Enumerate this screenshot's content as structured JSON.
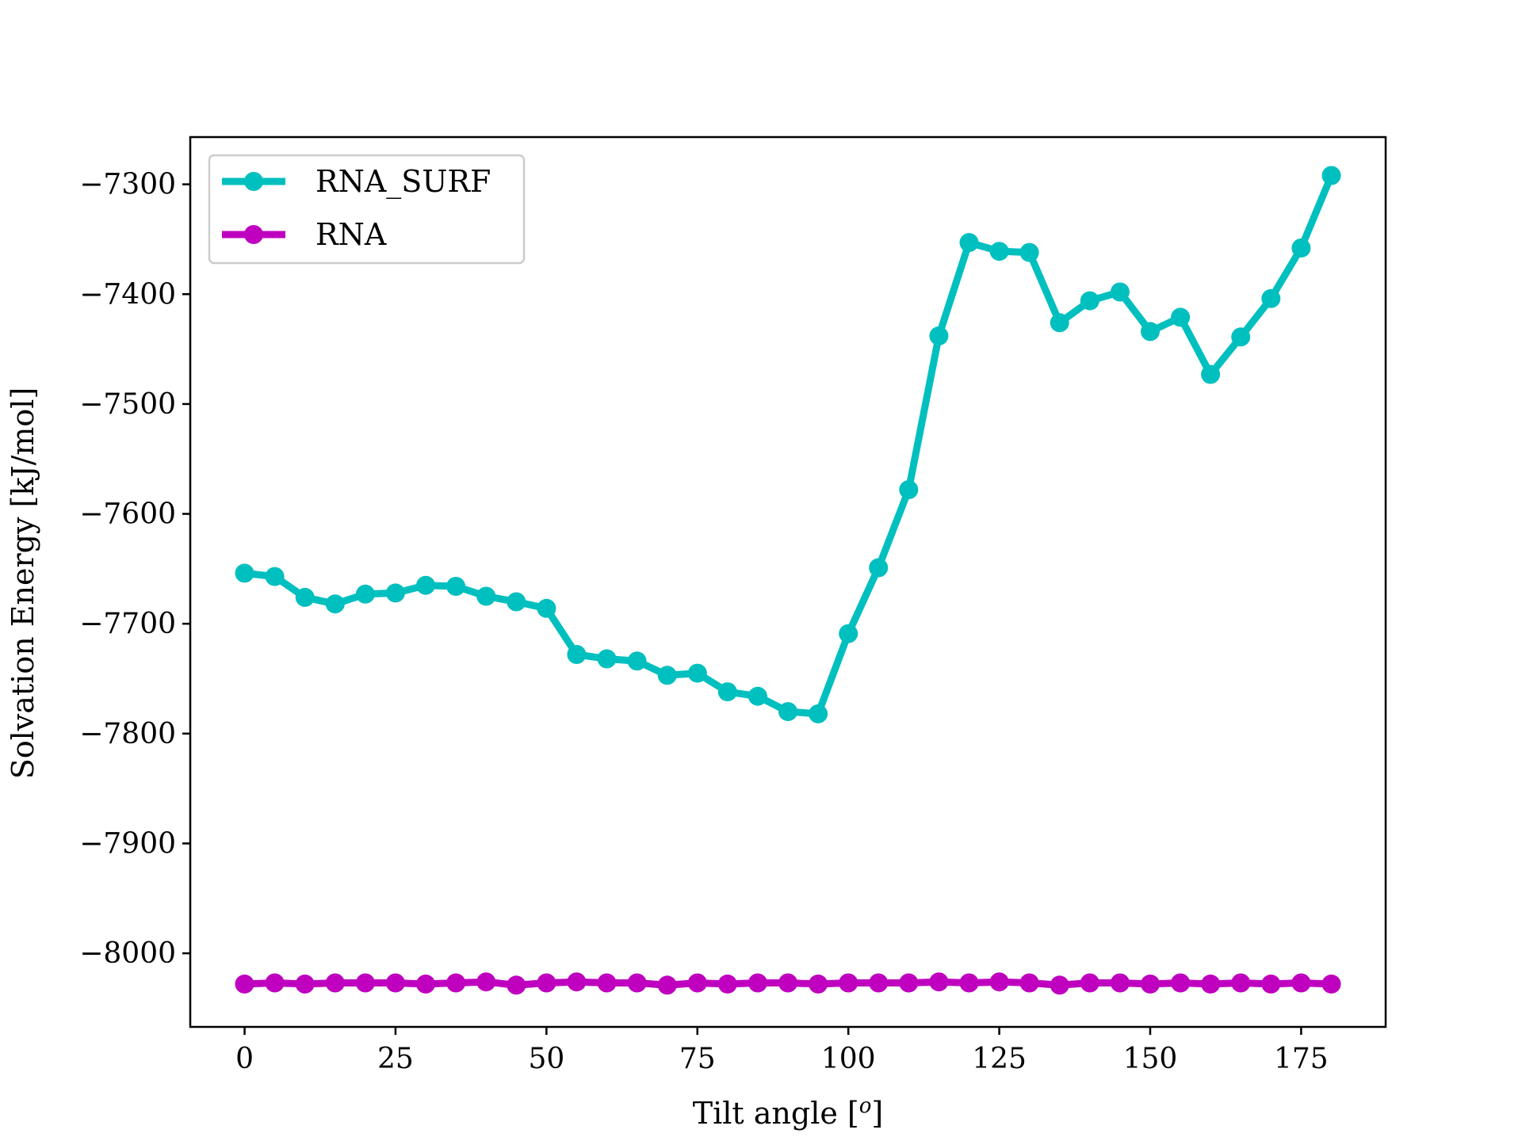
{
  "chart_data": {
    "type": "line",
    "title": "",
    "xlabel": "Tilt angle [",
    "xlabel_sup": "o",
    "xlabel_suffix": "]",
    "ylabel": "Solvation Energy [kJ/mol]",
    "xlim": [
      -9,
      189
    ],
    "ylim": [
      -8067,
      -7257
    ],
    "x_ticks": [
      0,
      25,
      50,
      75,
      100,
      125,
      150,
      175
    ],
    "x_tick_labels": [
      "0",
      "25",
      "50",
      "75",
      "100",
      "125",
      "150",
      "175"
    ],
    "y_ticks": [
      -7300,
      -7400,
      -7500,
      -7600,
      -7700,
      -7800,
      -7900,
      -8000
    ],
    "y_tick_labels": [
      "−7300",
      "−7400",
      "−7500",
      "−7600",
      "−7700",
      "−7800",
      "−7900",
      "−8000"
    ],
    "grid": false,
    "legend_position": "upper-left",
    "x": [
      0,
      5,
      10,
      15,
      20,
      25,
      30,
      35,
      40,
      45,
      50,
      55,
      60,
      65,
      70,
      75,
      80,
      85,
      90,
      95,
      100,
      105,
      110,
      115,
      120,
      125,
      130,
      135,
      140,
      145,
      150,
      155,
      160,
      165,
      170,
      175,
      180
    ],
    "series": [
      {
        "name": "RNA_SURF",
        "color": "#00bfbf",
        "marker": "circle",
        "values": [
          -7654,
          -7657,
          -7676,
          -7682,
          -7673,
          -7672,
          -7665,
          -7666,
          -7675,
          -7680,
          -7686,
          -7728,
          -7732,
          -7734,
          -7747,
          -7745,
          -7762,
          -7766,
          -7780,
          -7782,
          -7709,
          -7649,
          -7578,
          -7438,
          -7353,
          -7361,
          -7362,
          -7426,
          -7406,
          -7398,
          -7434,
          -7421,
          -7473,
          -7439,
          -7404,
          -7358,
          -7292
        ]
      },
      {
        "name": "RNA",
        "color": "#bf00bf",
        "marker": "circle",
        "values": [
          -8028,
          -8027,
          -8028,
          -8027,
          -8027,
          -8027,
          -8028,
          -8027,
          -8026,
          -8029,
          -8027,
          -8026,
          -8027,
          -8027,
          -8029,
          -8027,
          -8028,
          -8027,
          -8027,
          -8028,
          -8027,
          -8027,
          -8027,
          -8026,
          -8027,
          -8026,
          -8027,
          -8029,
          -8027,
          -8027,
          -8028,
          -8027,
          -8028,
          -8027,
          -8028,
          -8027,
          -8028
        ]
      }
    ]
  }
}
